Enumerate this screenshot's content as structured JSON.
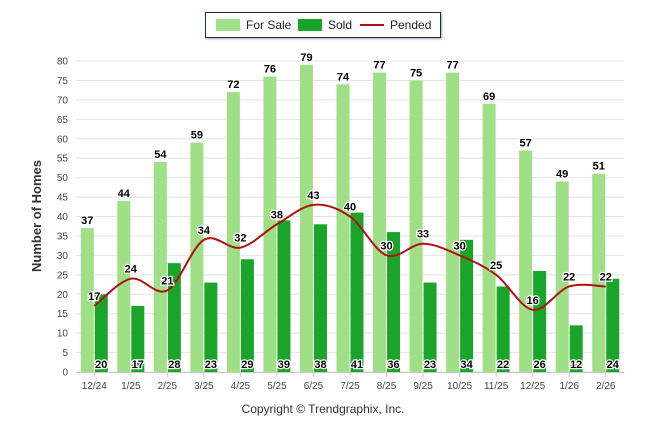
{
  "chart_data": {
    "type": "bar",
    "categories": [
      "12/24",
      "1/25",
      "2/25",
      "3/25",
      "4/25",
      "5/25",
      "6/25",
      "7/25",
      "8/25",
      "9/25",
      "10/25",
      "11/25",
      "12/25",
      "1/26",
      "2/26"
    ],
    "series": [
      {
        "name": "For Sale",
        "type": "bar",
        "color": "#9fdf86",
        "values": [
          37,
          44,
          54,
          59,
          72,
          76,
          79,
          74,
          77,
          75,
          77,
          69,
          57,
          49,
          51
        ]
      },
      {
        "name": "Sold",
        "type": "bar",
        "color": "#1aa52a",
        "values": [
          20,
          17,
          28,
          23,
          29,
          39,
          38,
          41,
          36,
          23,
          34,
          22,
          26,
          12,
          24
        ]
      },
      {
        "name": "Pended",
        "type": "line",
        "color": "#b01212",
        "values": [
          17,
          24,
          21,
          34,
          32,
          38,
          43,
          40,
          30,
          33,
          30,
          25,
          16,
          22,
          22
        ]
      }
    ],
    "title": "",
    "xlabel": "",
    "ylabel": "Number of Homes",
    "ylim": [
      0,
      80
    ],
    "yticks": [
      0,
      5,
      10,
      15,
      20,
      25,
      30,
      35,
      40,
      45,
      50,
      55,
      60,
      65,
      70,
      75,
      80
    ],
    "legend_position": "top-center",
    "grid": true
  },
  "footer": "Copyright © Trendgraphix, Inc."
}
